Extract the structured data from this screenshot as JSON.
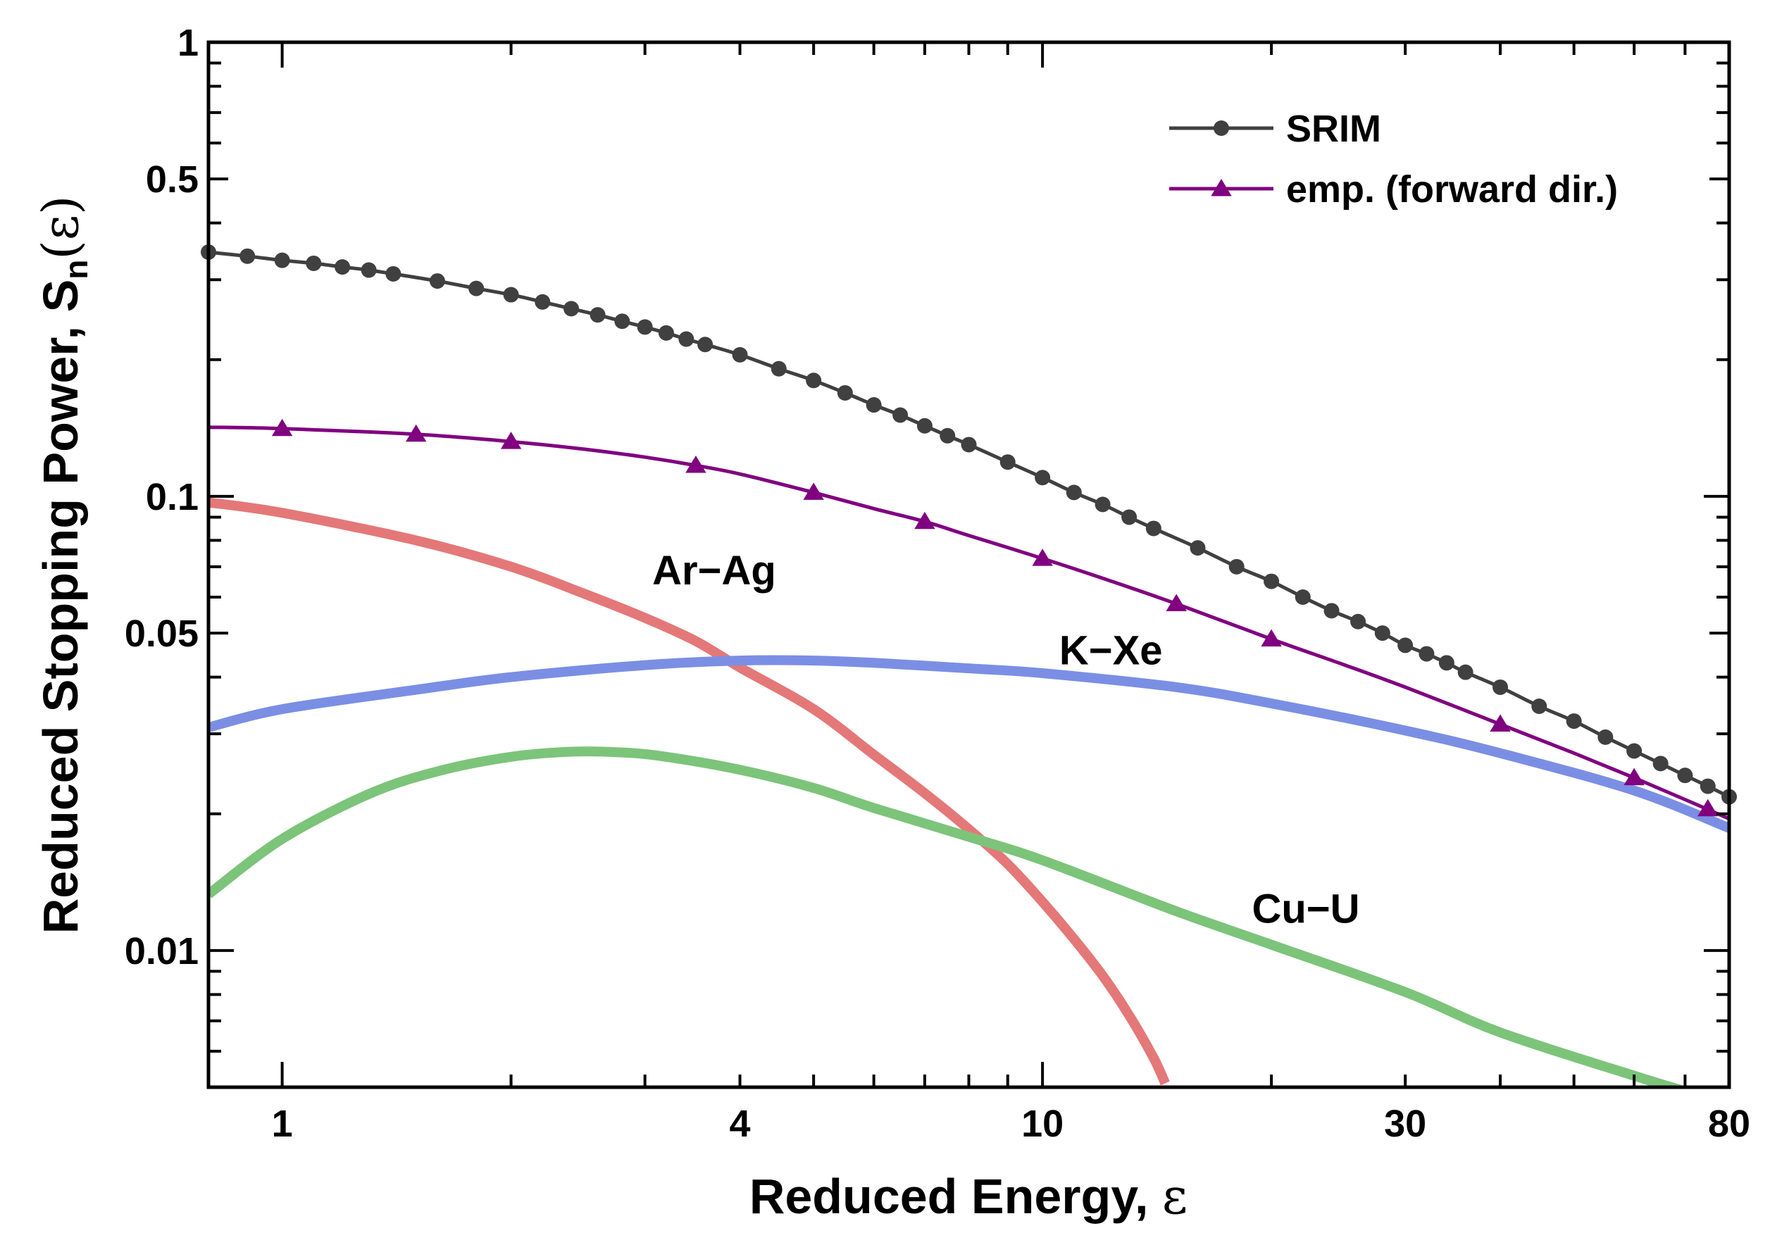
{
  "chart_data": {
    "type": "line",
    "x_scale": "log",
    "y_scale": "log",
    "xlim": [
      0.8,
      80
    ],
    "ylim": [
      0.005,
      1
    ],
    "grid": false,
    "legend_position": "top-right",
    "xlabel": "Reduced Energy, ",
    "xlabel_symbol": "ε",
    "ylabel_main": "Reduced Stopping Power, S",
    "ylabel_sub": "n",
    "ylabel_arg": "(ε)",
    "x_ticks": [
      {
        "value": 1,
        "label": "1"
      },
      {
        "value": 4,
        "label": "4"
      },
      {
        "value": 10,
        "label": "10"
      },
      {
        "value": 30,
        "label": "30"
      },
      {
        "value": 80,
        "label": "80"
      }
    ],
    "y_ticks": [
      {
        "value": 1,
        "label": "1"
      },
      {
        "value": 0.5,
        "label": "0.5"
      },
      {
        "value": 0.1,
        "label": "0.1"
      },
      {
        "value": 0.05,
        "label": "0.05"
      },
      {
        "value": 0.01,
        "label": "0.01"
      }
    ],
    "series": [
      {
        "name": "SRIM",
        "color": "#404040",
        "marker": "circle",
        "line_width": 5,
        "x": [
          0.8,
          0.9,
          1.0,
          1.1,
          1.2,
          1.3,
          1.4,
          1.6,
          1.8,
          2.0,
          2.2,
          2.4,
          2.6,
          2.8,
          3.0,
          3.2,
          3.4,
          3.6,
          4.0,
          4.5,
          5.0,
          5.5,
          6.0,
          6.5,
          7.0,
          7.5,
          8.0,
          9.0,
          10.0,
          11.0,
          12.0,
          13.0,
          14.0,
          16.0,
          18.0,
          20.0,
          22.0,
          24.0,
          26.0,
          28.0,
          30.0,
          32.0,
          34.0,
          36.0,
          40.0,
          45.0,
          50.0,
          55.0,
          60.0,
          65.0,
          70.0,
          75.0,
          80.0
        ],
        "y": [
          0.345,
          0.338,
          0.331,
          0.326,
          0.32,
          0.315,
          0.309,
          0.298,
          0.287,
          0.278,
          0.268,
          0.259,
          0.251,
          0.243,
          0.236,
          0.229,
          0.222,
          0.216,
          0.205,
          0.191,
          0.18,
          0.169,
          0.159,
          0.151,
          0.143,
          0.136,
          0.13,
          0.119,
          0.11,
          0.102,
          0.096,
          0.09,
          0.085,
          0.077,
          0.07,
          0.065,
          0.06,
          0.056,
          0.053,
          0.05,
          0.047,
          0.045,
          0.043,
          0.041,
          0.038,
          0.0345,
          0.032,
          0.0295,
          0.0275,
          0.0258,
          0.0243,
          0.023,
          0.0218
        ]
      },
      {
        "name": "emp. (forward dir.)",
        "color": "#800080",
        "marker": "triangle",
        "line_width": 5,
        "x": [
          0.8,
          1.0,
          1.5,
          2.0,
          2.5,
          3.0,
          3.5,
          4.0,
          5.0,
          6.0,
          7.0,
          8.0,
          10.0,
          12.0,
          15.0,
          20.0,
          25.0,
          30.0,
          40.0,
          50.0,
          60.0,
          70.0,
          80.0
        ],
        "y": [
          0.142,
          0.141,
          0.137,
          0.132,
          0.127,
          0.122,
          0.117,
          0.112,
          0.102,
          0.094,
          0.088,
          0.082,
          0.073,
          0.066,
          0.058,
          0.0485,
          0.0425,
          0.038,
          0.0315,
          0.0272,
          0.024,
          0.0215,
          0.0195
        ]
      },
      {
        "name": "Ar-Ag",
        "color": "#e47878",
        "marker": "none",
        "line_width": 14,
        "x": [
          0.8,
          1.0,
          1.5,
          2.0,
          2.5,
          3.0,
          3.5,
          4.0,
          5.0,
          6.0,
          7.0,
          8.0,
          9.0,
          10.0,
          11.0,
          12.0,
          13.0,
          14.0,
          14.5
        ],
        "y": [
          0.097,
          0.092,
          0.08,
          0.07,
          0.061,
          0.054,
          0.048,
          0.042,
          0.034,
          0.027,
          0.0222,
          0.0185,
          0.0155,
          0.0128,
          0.0106,
          0.0088,
          0.0072,
          0.0058,
          0.0051
        ]
      },
      {
        "name": "K-Xe",
        "color": "#7a8fe4",
        "marker": "none",
        "line_width": 14,
        "x": [
          0.8,
          1.0,
          1.5,
          2.0,
          3.0,
          4.0,
          5.0,
          6.0,
          8.0,
          10.0,
          15.0,
          20.0,
          30.0,
          40.0,
          60.0,
          80.0
        ],
        "y": [
          0.031,
          0.034,
          0.0375,
          0.04,
          0.0425,
          0.0435,
          0.0435,
          0.043,
          0.0418,
          0.0408,
          0.038,
          0.035,
          0.0305,
          0.0272,
          0.0225,
          0.0186
        ]
      },
      {
        "name": "Cu-U",
        "color": "#7cc47a",
        "marker": "none",
        "line_width": 14,
        "x": [
          0.8,
          1.0,
          1.3,
          1.6,
          2.0,
          2.4,
          2.8,
          3.2,
          4.0,
          5.0,
          6.0,
          8.0,
          10.0,
          15.0,
          20.0,
          30.0,
          40.0,
          60.0,
          70.0
        ],
        "y": [
          0.0133,
          0.0176,
          0.0221,
          0.0248,
          0.0267,
          0.0274,
          0.0273,
          0.0267,
          0.025,
          0.0228,
          0.0206,
          0.0178,
          0.0158,
          0.0122,
          0.0103,
          0.0081,
          0.0066,
          0.0053,
          0.0049
        ]
      }
    ],
    "legend": [
      {
        "label": "SRIM",
        "color": "#404040",
        "marker": "circle"
      },
      {
        "label": "emp. (forward dir.)",
        "color": "#800080",
        "marker": "triangle"
      }
    ],
    "annotations": [
      {
        "text": "Ar−Ag",
        "x": 3.7,
        "y": 0.069
      },
      {
        "text": "K−Xe",
        "x": 12.3,
        "y": 0.046
      },
      {
        "text": "Cu−U",
        "x": 22.2,
        "y": 0.0124
      }
    ]
  }
}
